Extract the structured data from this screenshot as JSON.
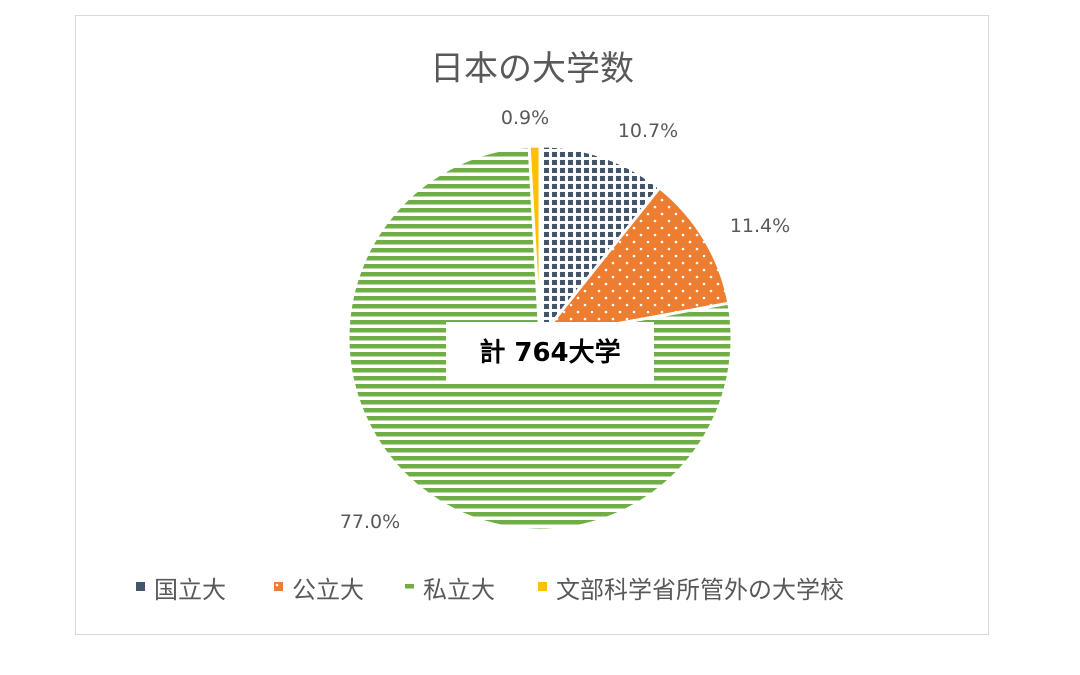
{
  "chart_data": {
    "type": "pie",
    "title": "日本の大学数",
    "center_label": "計 764大学",
    "start_angle_deg": 0,
    "direction": "clockwise",
    "slices": [
      {
        "name": "国立大",
        "value": 10.7,
        "label": "10.7%",
        "color": "#44546a",
        "pattern": "crosshatch"
      },
      {
        "name": "公立大",
        "value": 11.4,
        "label": "11.4%",
        "color": "#ed7d31",
        "pattern": "dots"
      },
      {
        "name": "私立大",
        "value": 77.0,
        "label": "77.0%",
        "color": "#70ad47",
        "pattern": "horizontal-stripes"
      },
      {
        "name": "文部科学省所管外の大学校",
        "value": 0.9,
        "label": "0.9%",
        "color": "#ffc000",
        "pattern": "solid"
      }
    ],
    "legend_position": "bottom"
  }
}
